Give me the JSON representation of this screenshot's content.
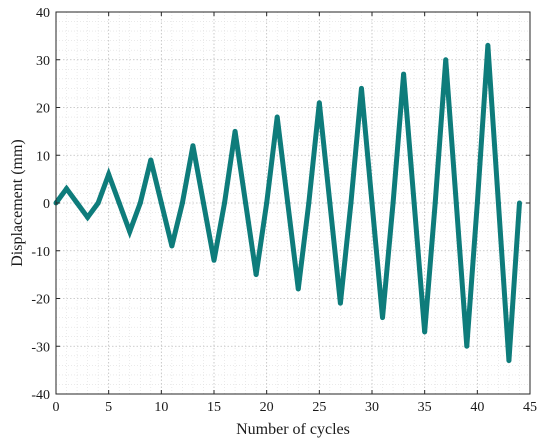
{
  "chart_data": {
    "type": "line",
    "title": "",
    "xlabel": "Number of cycles",
    "ylabel": "Displacement (mm)",
    "xlim": [
      0,
      45
    ],
    "ylim": [
      -40,
      40
    ],
    "x_ticks": [
      0,
      5,
      10,
      15,
      20,
      25,
      30,
      35,
      40,
      45
    ],
    "y_ticks": [
      -40,
      -30,
      -20,
      -10,
      0,
      10,
      20,
      30,
      40
    ],
    "x_tick_labels": [
      "0",
      "5",
      "10",
      "15",
      "20",
      "25",
      "30",
      "35",
      "40",
      "45"
    ],
    "y_tick_labels": [
      "-40",
      "-30",
      "-20",
      "-10",
      "0",
      "10",
      "20",
      "30",
      "40"
    ],
    "grid": "on (major and minor, dotted)",
    "series": [
      {
        "color": "#0e7c7b",
        "x": [
          0,
          1,
          2,
          3,
          4,
          5,
          6,
          7,
          8,
          9,
          10,
          11,
          12,
          13,
          14,
          15,
          16,
          17,
          18,
          19,
          20,
          21,
          22,
          23,
          24,
          25,
          26,
          27,
          28,
          29,
          30,
          31,
          32,
          33,
          34,
          35,
          36,
          37,
          38,
          39,
          40,
          41,
          42,
          43,
          44
        ],
        "y": [
          0,
          3,
          0,
          -3,
          0,
          6,
          0,
          -6,
          0,
          9,
          0,
          -9,
          0,
          12,
          0,
          -12,
          0,
          15,
          0,
          -15,
          0,
          18,
          0,
          -18,
          0,
          21,
          0,
          -21,
          0,
          24,
          0,
          -24,
          0,
          27,
          0,
          -27,
          0,
          30,
          0,
          -30,
          0,
          33,
          0,
          -33,
          0
        ]
      }
    ]
  }
}
